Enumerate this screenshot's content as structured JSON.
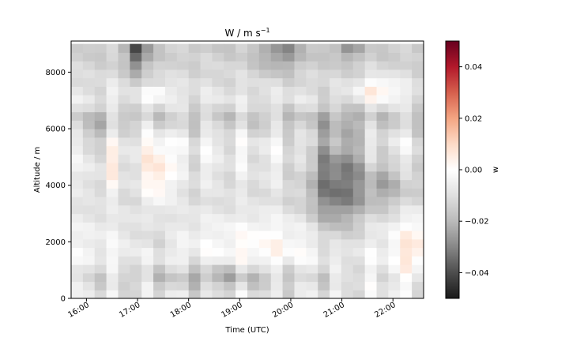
{
  "chart_data": {
    "type": "heatmap",
    "title": "W / m s",
    "title_superscript": "−1",
    "xlabel": "Time (UTC)",
    "ylabel": "Altitude / m",
    "x_ticks": [
      "16:00",
      "17:00",
      "18:00",
      "19:00",
      "20:00",
      "21:00",
      "22:00"
    ],
    "x_tick_hours": [
      16,
      17,
      18,
      19,
      20,
      21,
      22
    ],
    "x_range_hours": [
      15.7,
      22.6
    ],
    "y_ticks": [
      "0",
      "2000",
      "4000",
      "6000",
      "8000"
    ],
    "y_tick_values": [
      0,
      2000,
      4000,
      6000,
      8000
    ],
    "ylim": [
      0,
      9100
    ],
    "colorbar": {
      "label": "w",
      "range": [
        -0.05,
        0.05
      ],
      "ticks": [
        "0.04",
        "0.02",
        "0.00",
        "−0.02",
        "−0.04"
      ],
      "tick_values": [
        0.04,
        0.02,
        0.0,
        -0.02,
        -0.04
      ],
      "colormap": "RdGy_r",
      "stops": [
        "#1a1a1a",
        "#4d4d4d",
        "#878787",
        "#bababa",
        "#e0e0e0",
        "#ffffff",
        "#fddbc7",
        "#f4a582",
        "#d6604d",
        "#b2182b",
        "#67001f"
      ]
    },
    "grid": false,
    "columns": 30,
    "altitude_levels": [
      150,
      450,
      750,
      1050,
      1350,
      1650,
      1950,
      2250,
      2550,
      2850,
      3150,
      3450,
      3750,
      4050,
      4350,
      4650,
      4950,
      5250,
      5550,
      5850,
      6150,
      6450,
      6750,
      7050,
      7350,
      7650,
      7950,
      8250,
      8550,
      8850
    ],
    "column_hours": [
      15.81,
      16.04,
      16.27,
      16.5,
      16.73,
      16.96,
      17.19,
      17.42,
      17.65,
      17.88,
      18.11,
      18.34,
      18.57,
      18.8,
      19.03,
      19.26,
      19.49,
      19.72,
      19.95,
      20.18,
      20.41,
      20.64,
      20.87,
      21.1,
      21.33,
      21.56,
      21.79,
      22.02,
      22.25,
      22.48
    ],
    "features": {
      "mean_profile": [
        [
          0,
          -0.008
        ],
        [
          800,
          -0.012
        ],
        [
          1500,
          -0.004
        ],
        [
          2500,
          -0.006
        ],
        [
          3500,
          -0.01
        ],
        [
          4500,
          -0.008
        ],
        [
          5500,
          -0.006
        ],
        [
          6400,
          -0.016
        ],
        [
          7000,
          -0.008
        ],
        [
          8000,
          -0.012
        ],
        [
          9100,
          -0.016
        ]
      ],
      "blobs": [
        {
          "t": 17.4,
          "z": 4500,
          "st": 0.18,
          "sz": 850,
          "a": 0.018
        },
        {
          "t": 16.45,
          "z": 4700,
          "st": 0.1,
          "sz": 500,
          "a": 0.011
        },
        {
          "t": 16.45,
          "z": 3900,
          "st": 0.08,
          "sz": 250,
          "a": 0.005
        },
        {
          "t": 17.4,
          "z": 7300,
          "st": 0.18,
          "sz": 200,
          "a": 0.012
        },
        {
          "t": 16.45,
          "z": 7300,
          "st": 0.06,
          "sz": 200,
          "a": 0.005
        },
        {
          "t": 21.7,
          "z": 7400,
          "st": 0.3,
          "sz": 300,
          "a": 0.016
        },
        {
          "t": 22.4,
          "z": 1700,
          "st": 0.25,
          "sz": 900,
          "a": 0.012
        },
        {
          "t": 21.7,
          "z": 700,
          "st": 0.5,
          "sz": 400,
          "a": 0.004
        },
        {
          "t": 19.5,
          "z": 1900,
          "st": 0.7,
          "sz": 700,
          "a": 0.006
        },
        {
          "t": 20.9,
          "z": 4200,
          "st": 0.4,
          "sz": 1400,
          "a": -0.026
        },
        {
          "t": 21.9,
          "z": 4000,
          "st": 0.35,
          "sz": 600,
          "a": -0.012
        },
        {
          "t": 17.0,
          "z": 8800,
          "st": 0.15,
          "sz": 600,
          "a": -0.025
        },
        {
          "t": 19.8,
          "z": 8700,
          "st": 0.3,
          "sz": 500,
          "a": -0.014
        },
        {
          "t": 21.1,
          "z": 8900,
          "st": 0.2,
          "sz": 400,
          "a": -0.012
        },
        {
          "t": 18.6,
          "z": 800,
          "st": 0.8,
          "sz": 300,
          "a": -0.01
        },
        {
          "t": 17.3,
          "z": 2200,
          "st": 0.3,
          "sz": 600,
          "a": -0.006
        },
        {
          "t": 16.1,
          "z": 5800,
          "st": 0.2,
          "sz": 500,
          "a": -0.008
        }
      ]
    }
  }
}
